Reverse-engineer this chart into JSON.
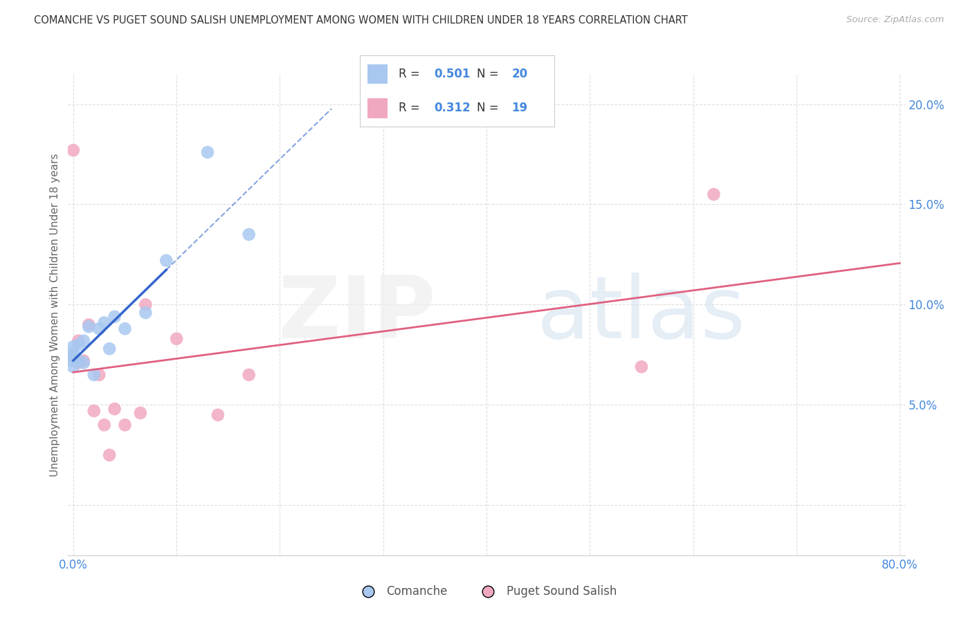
{
  "title": "COMANCHE VS PUGET SOUND SALISH UNEMPLOYMENT AMONG WOMEN WITH CHILDREN UNDER 18 YEARS CORRELATION CHART",
  "source": "Source: ZipAtlas.com",
  "ylabel": "Unemployment Among Women with Children Under 18 years",
  "xlim": [
    -0.005,
    0.805
  ],
  "ylim": [
    -0.025,
    0.215
  ],
  "xtick_positions": [
    0.0,
    0.1,
    0.2,
    0.3,
    0.4,
    0.5,
    0.6,
    0.7,
    0.8
  ],
  "xticklabels": [
    "0.0%",
    "",
    "",
    "",
    "",
    "",
    "",
    "",
    "80.0%"
  ],
  "ytick_positions": [
    0.0,
    0.05,
    0.1,
    0.15,
    0.2
  ],
  "yticklabels": [
    "",
    "5.0%",
    "10.0%",
    "15.0%",
    "20.0%"
  ],
  "comanche_color": "#a8c8f0",
  "puget_color": "#f0a8c0",
  "comanche_line_color": "#3366cc",
  "puget_line_color": "#e06080",
  "legend_text_color": "#4488dd",
  "ytick_color": "#4488dd",
  "xtick_color": "#4488dd",
  "R_comanche": "0.501",
  "N_comanche": "20",
  "R_puget": "0.312",
  "N_puget": "19",
  "comanche_x": [
    0.0,
    0.0,
    0.0,
    0.0,
    0.0,
    0.005,
    0.005,
    0.01,
    0.01,
    0.015,
    0.02,
    0.025,
    0.03,
    0.035,
    0.04,
    0.05,
    0.07,
    0.09,
    0.13,
    0.17
  ],
  "comanche_y": [
    0.072,
    0.074,
    0.076,
    0.079,
    0.069,
    0.072,
    0.08,
    0.071,
    0.082,
    0.089,
    0.065,
    0.088,
    0.091,
    0.078,
    0.094,
    0.088,
    0.096,
    0.122,
    0.176,
    0.135
  ],
  "puget_x": [
    0.0,
    0.0,
    0.005,
    0.005,
    0.01,
    0.015,
    0.02,
    0.025,
    0.03,
    0.035,
    0.04,
    0.05,
    0.065,
    0.07,
    0.1,
    0.14,
    0.17,
    0.55,
    0.62
  ],
  "puget_y": [
    0.072,
    0.177,
    0.071,
    0.082,
    0.072,
    0.09,
    0.047,
    0.065,
    0.04,
    0.025,
    0.048,
    0.04,
    0.046,
    0.1,
    0.083,
    0.045,
    0.065,
    0.069,
    0.155
  ],
  "background_color": "#ffffff",
  "grid_color": "#dddddd",
  "spine_bottom_color": "#cccccc",
  "scatter_size": 180
}
